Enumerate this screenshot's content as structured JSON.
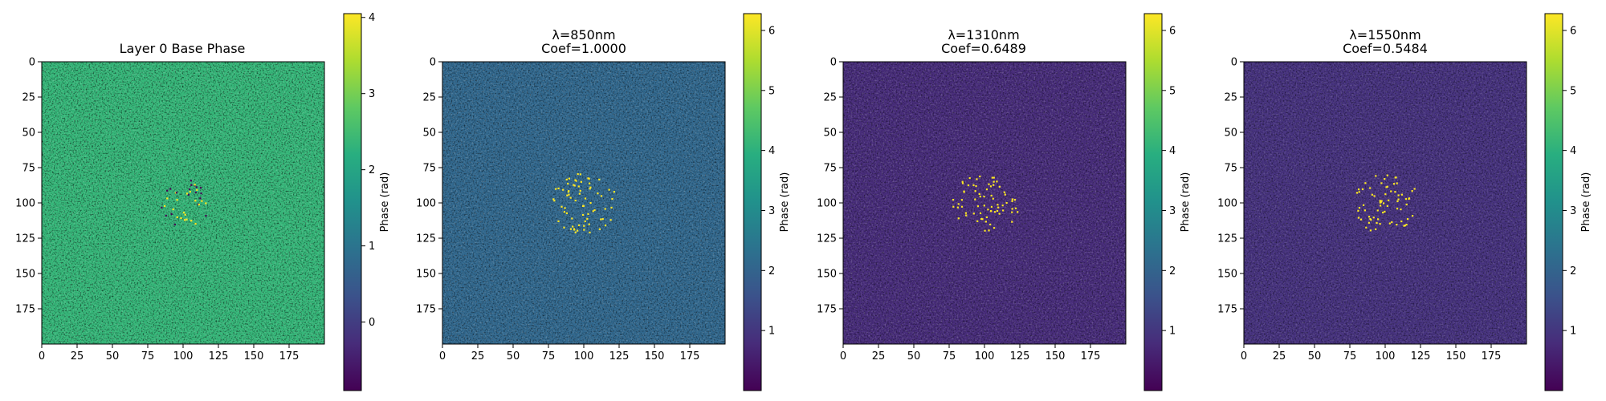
{
  "chart_data": [
    {
      "type": "heatmap",
      "title_lines": [
        "Layer 0 Base Phase"
      ],
      "xticks": [
        0,
        25,
        50,
        75,
        100,
        125,
        150,
        175
      ],
      "yticks": [
        0,
        25,
        50,
        75,
        100,
        125,
        150,
        175
      ],
      "xlim": [
        0,
        200
      ],
      "ylim": [
        0,
        200
      ],
      "colorbar": {
        "label": "Phase (rad)",
        "ticks": [
          0,
          1,
          2,
          3,
          4
        ],
        "range": [
          -0.9,
          4.05
        ]
      },
      "grid": "200x200 random phase field with dark/bright speckle cluster near (100, 100)"
    },
    {
      "type": "heatmap",
      "title_lines": [
        "λ=850nm",
        "Coef=1.0000"
      ],
      "xticks": [
        0,
        25,
        50,
        75,
        100,
        125,
        150,
        175
      ],
      "yticks": [
        0,
        25,
        50,
        75,
        100,
        125,
        150,
        175
      ],
      "xlim": [
        0,
        200
      ],
      "ylim": [
        0,
        200
      ],
      "colorbar": {
        "label": "Phase (rad)",
        "ticks": [
          1,
          2,
          3,
          4,
          5,
          6
        ],
        "range": [
          0.0,
          6.28
        ]
      },
      "grid": "200x200 phase field, bright speckle cluster near (100, 100)"
    },
    {
      "type": "heatmap",
      "title_lines": [
        "λ=1310nm",
        "Coef=0.6489"
      ],
      "xticks": [
        0,
        25,
        50,
        75,
        100,
        125,
        150,
        175
      ],
      "yticks": [
        0,
        25,
        50,
        75,
        100,
        125,
        150,
        175
      ],
      "xlim": [
        0,
        200
      ],
      "ylim": [
        0,
        200
      ],
      "colorbar": {
        "label": "Phase (rad)",
        "ticks": [
          1,
          2,
          3,
          4,
          5,
          6
        ],
        "range": [
          0.0,
          6.28
        ]
      },
      "grid": "200x200 phase field, bright speckle cluster near (100, 100)"
    },
    {
      "type": "heatmap",
      "title_lines": [
        "λ=1550nm",
        "Coef=0.5484"
      ],
      "xticks": [
        0,
        25,
        50,
        75,
        100,
        125,
        150,
        175
      ],
      "yticks": [
        0,
        25,
        50,
        75,
        100,
        125,
        150,
        175
      ],
      "xlim": [
        0,
        200
      ],
      "ylim": [
        0,
        200
      ],
      "colorbar": {
        "label": "Phase (rad)",
        "ticks": [
          1,
          2,
          3,
          4,
          5,
          6
        ],
        "range": [
          0.0,
          6.28
        ]
      },
      "grid": "200x200 phase field, bright speckle cluster near (100, 100)"
    }
  ],
  "style": {
    "colormap": "viridis",
    "panel_mean_colors": [
      "#35b779",
      "#31688e",
      "#472c7a",
      "#46327e"
    ],
    "speckle_color": "#fde725"
  }
}
